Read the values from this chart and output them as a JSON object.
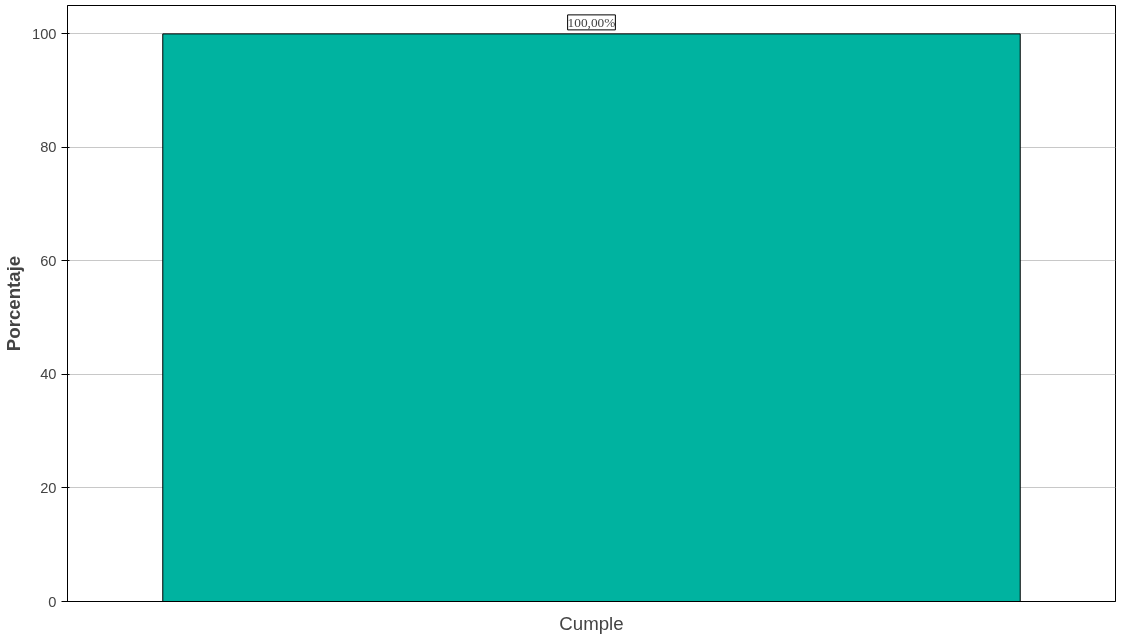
{
  "chart_data": {
    "type": "bar",
    "ylabel": "Porcentaje",
    "categories": [
      "Cumple"
    ],
    "values": [
      100
    ],
    "color": "#00b3a0",
    "value_labels": [
      "100,00%"
    ],
    "ylim": [
      0,
      105
    ],
    "yticks": [
      0,
      20,
      40,
      60,
      80,
      100
    ],
    "grid": "y"
  }
}
